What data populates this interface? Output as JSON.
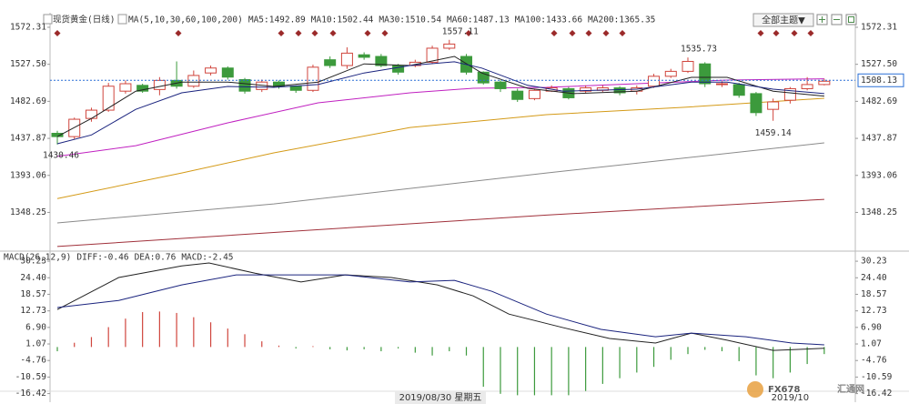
{
  "ui": {
    "theme_button": "全部主题▼",
    "crosshair_date": "2019/08/30 星期五",
    "watermark": [
      "FX678",
      "汇通网"
    ]
  },
  "chart_data": [
    {
      "type": "candlestick",
      "title": "现货黄金(日线)",
      "indicator": "MA(5,10,30,60,100,200)",
      "up_color": "#d0453d",
      "down_color": "#3c9a3c",
      "categories": [
        null,
        null,
        null,
        null,
        null,
        null,
        null,
        null,
        null,
        null,
        null,
        null,
        null,
        null,
        null,
        null,
        null,
        null,
        null,
        null,
        null,
        null,
        null,
        null,
        null,
        null,
        null,
        null,
        null,
        null,
        null,
        null,
        null,
        null,
        null,
        null,
        null,
        null,
        null,
        null,
        null,
        null,
        null,
        "2019/10",
        null,
        null
      ],
      "open": [
        1444,
        1440,
        1462,
        1472,
        1495,
        1502,
        1497,
        1508,
        1501,
        1517,
        1523,
        1509,
        1497,
        1506,
        1501,
        1496,
        1533,
        1526,
        1539,
        1537,
        1526,
        1526,
        1530,
        1547,
        1537,
        1518,
        1506,
        1495,
        1486,
        1495,
        1498,
        1495,
        1496,
        1499,
        1495,
        1501,
        1513,
        1519,
        1528,
        1503,
        1503,
        1492,
        1473,
        1484,
        1498,
        1503
      ],
      "high": [
        1447,
        1463,
        1475,
        1505,
        1508,
        1504,
        1512,
        1531,
        1520,
        1526,
        1525,
        1511,
        1509,
        1508,
        1502,
        1527,
        1537,
        1548,
        1542,
        1540,
        1528,
        1533,
        1550,
        1557.11,
        1540,
        1519,
        1508,
        1498,
        1498,
        1502,
        1500,
        1502,
        1502,
        1501,
        1502,
        1516,
        1522,
        1535.73,
        1530,
        1507,
        1505,
        1494,
        1486,
        1500,
        1512,
        1510
      ],
      "low": [
        1430.46,
        1437,
        1458,
        1470,
        1492,
        1493,
        1490,
        1498,
        1499,
        1514,
        1509,
        1492,
        1494,
        1498,
        1493,
        1494,
        1523,
        1522,
        1533,
        1524,
        1515,
        1524,
        1528,
        1545,
        1515,
        1503,
        1494,
        1482,
        1484,
        1494,
        1485,
        1493,
        1494,
        1490,
        1491,
        1499,
        1511,
        1517,
        1500,
        1500,
        1487,
        1465,
        1459.14,
        1480,
        1496,
        1502
      ],
      "close": [
        1440,
        1461,
        1472,
        1501,
        1504,
        1495,
        1508,
        1501,
        1514,
        1523,
        1512,
        1495,
        1506,
        1501,
        1496,
        1524,
        1526,
        1541,
        1536,
        1526,
        1518,
        1530,
        1547,
        1552,
        1518,
        1505,
        1498,
        1485,
        1496,
        1499,
        1487,
        1499,
        1499,
        1493,
        1499,
        1513,
        1519,
        1531,
        1504,
        1504,
        1490,
        1469,
        1482,
        1498,
        1503,
        1507
      ],
      "last_price": 1508.13,
      "last_price_color": "#2a6fd6",
      "series": [
        {
          "name": "MA5:1492.89",
          "color": "#222222",
          "x": [
            0,
            2,
            4.6,
            7.3,
            10,
            12.7,
            15.3,
            18,
            20.7,
            23.3,
            24.9,
            27.6,
            30.3,
            34,
            37.2,
            39.3,
            42,
            45
          ],
          "values": [
            1440,
            1462,
            1495,
            1506,
            1506,
            1500.7,
            1506,
            1528,
            1526,
            1537,
            1517,
            1498.5,
            1492,
            1495,
            1511.7,
            1511.7,
            1495,
            1489
          ]
        },
        {
          "name": "MA10:1502.44",
          "color": "#1a237e",
          "x": [
            0,
            2,
            4.6,
            7.3,
            10,
            12.7,
            15.3,
            18,
            20.7,
            23.3,
            24.9,
            27.6,
            29.7,
            34,
            37.2,
            39.3,
            42,
            45
          ],
          "values": [
            1431.3,
            1442,
            1473,
            1493,
            1500.7,
            1499.6,
            1503,
            1517,
            1526,
            1530.5,
            1523,
            1502,
            1495,
            1497.4,
            1506,
            1506,
            1497.4,
            1492
          ]
        },
        {
          "name": "MA30:1510.54",
          "color": "#c020c0",
          "x": [
            0,
            4.6,
            10,
            15.3,
            20.7,
            24.4,
            28.7,
            34,
            39.3,
            45
          ],
          "values": [
            1416,
            1429,
            1456.7,
            1480.9,
            1493,
            1498.5,
            1499.6,
            1504,
            1508.4,
            1510
          ]
        },
        {
          "name": "MA60:1487.13",
          "color": "#d49a17",
          "x": [
            0,
            7.3,
            12.7,
            20.7,
            28.7,
            36.7,
            45
          ],
          "values": [
            1365,
            1396,
            1420.3,
            1451,
            1466.6,
            1475.4,
            1486.4
          ]
        },
        {
          "name": "MA100:1433.66",
          "color": "#8a8a8a",
          "x": [
            0,
            12.7,
            28.7,
            45
          ],
          "values": [
            1335.5,
            1358.6,
            1396,
            1432.4
          ]
        },
        {
          "name": "MA200:1365.35",
          "color": "#a0303a",
          "x": [
            0,
            12.7,
            28.7,
            45
          ],
          "values": [
            1307,
            1324,
            1345,
            1364
          ]
        }
      ],
      "ylim": [
        1305.8,
        1588.8
      ],
      "yticks": [
        1572.31,
        {
          "value": 1527.5,
          "label": "1527.50"
        },
        1482.69,
        1437.87,
        1393.06,
        1348.25
      ]
    },
    {
      "type": "macd",
      "title": "MACD(26,12,9)",
      "up_color": "#d0453d",
      "down_color": "#3c9a3c",
      "series": [
        {
          "name": "DIFF:-0.46",
          "color": "#222222",
          "x": [
            0,
            3.6,
            7.3,
            8.9,
            11.6,
            14.3,
            16.9,
            19.6,
            22.3,
            24.4,
            26.5,
            29.7,
            32.4,
            35.1,
            37.2,
            39.3,
            42,
            45
          ],
          "values": [
            13.2,
            24.5,
            28.6,
            29.6,
            26,
            22.9,
            25.4,
            24.5,
            21.9,
            18,
            11.6,
            6.8,
            3,
            1.4,
            4.9,
            2.4,
            -1.2,
            -0.46
          ]
        },
        {
          "name": "DEA:0.76",
          "color": "#1a237e",
          "x": [
            0,
            3.6,
            7.3,
            10.5,
            13.7,
            16.9,
            20.7,
            23.3,
            25.5,
            28.7,
            31.9,
            35.1,
            37.2,
            40.4,
            43.1,
            45
          ],
          "values": [
            13.9,
            16.4,
            21.9,
            25.4,
            25.4,
            25.4,
            22.9,
            23.5,
            19.6,
            11.6,
            6.2,
            3.6,
            4.9,
            3.6,
            1.4,
            0.76
          ]
        },
        {
          "name": "MACD:-2.45",
          "color": "#c71585",
          "values": [
            -1.5,
            1.5,
            3.5,
            7,
            10,
            12.3,
            12.5,
            12,
            10.5,
            8.7,
            6.5,
            4.5,
            2,
            0.5,
            -0.5,
            0.3,
            -0.8,
            -1.2,
            -0.8,
            -1.5,
            -0.5,
            -2,
            -3,
            -1.5,
            -3,
            -14,
            -16.5,
            -17,
            -17,
            -17,
            -17,
            -15.5,
            -13,
            -11,
            -9,
            -7,
            -4.5,
            -2.5,
            -1,
            -1.5,
            -5,
            -10,
            -11,
            -9,
            -6,
            -2.5
          ]
        }
      ],
      "ylim": [
        -18.8,
        32.5
      ],
      "yticks": [
        30.23,
        {
          "value": 24.4,
          "label": "24.40"
        },
        18.57,
        12.73,
        {
          "value": 6.9,
          "label": "6.90"
        },
        1.07,
        -4.76,
        -10.59,
        -16.42
      ]
    }
  ]
}
